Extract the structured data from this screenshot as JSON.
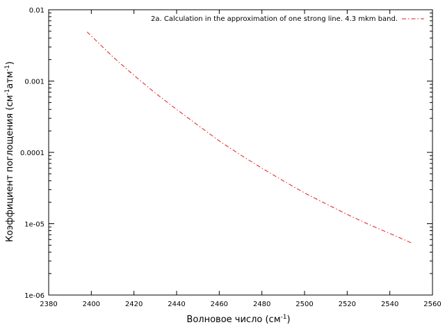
{
  "chart_data": {
    "type": "line",
    "title": "",
    "xlabel": {
      "main": "Волновое число (см",
      "sup": "-1",
      "tail": ")"
    },
    "ylabel": {
      "main": "Коэффициент поглощения (см",
      "sup1": "-1",
      "mid": "атм",
      "sup2": "-1",
      "tail": ")"
    },
    "xlim": [
      2380,
      2560
    ],
    "ylim": [
      1e-06,
      0.01
    ],
    "yscale": "log",
    "grid": false,
    "legend_position": "top-right",
    "x_ticks": [
      2380,
      2400,
      2420,
      2440,
      2460,
      2480,
      2500,
      2520,
      2540,
      2560
    ],
    "x_tick_labels": [
      "2380",
      "2400",
      "2420",
      "2440",
      "2460",
      "2480",
      "2500",
      "2520",
      "2540",
      "2560"
    ],
    "y_ticks": [
      1e-06,
      1e-05,
      0.0001,
      0.001,
      0.01
    ],
    "y_tick_labels": [
      "1e-06",
      "1e-05",
      "0.0001",
      "0.001",
      "0.01"
    ],
    "series": [
      {
        "name": "2a. Calculation in the approximation of one strong line. 4.3 mkm band.",
        "color": "#e41a1c",
        "dash": "dash-dot",
        "x": [
          2398,
          2410,
          2420,
          2430,
          2440,
          2450,
          2460,
          2470,
          2480,
          2490,
          2500,
          2510,
          2520,
          2530,
          2540,
          2550
        ],
        "y": [
          0.0049,
          0.0022,
          0.0012,
          0.00068,
          0.0004,
          0.00024,
          0.000145,
          9.2e-05,
          6e-05,
          4e-05,
          2.7e-05,
          1.9e-05,
          1.35e-05,
          9.8e-06,
          7.3e-06,
          5.4e-06
        ]
      }
    ]
  }
}
